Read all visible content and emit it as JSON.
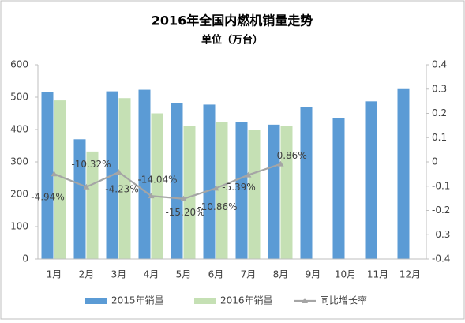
{
  "chart_data": {
    "type": "bar",
    "title": "2016年全国内燃机销量走势",
    "subtitle": "单位（万台）",
    "categories": [
      "1月",
      "2月",
      "3月",
      "4月",
      "5月",
      "6月",
      "7月",
      "8月",
      "9月",
      "10月",
      "11月",
      "12月"
    ],
    "series": [
      {
        "name": "2015年销量",
        "color": "#5b9bd5",
        "values": [
          515,
          370,
          518,
          523,
          482,
          477,
          422,
          415,
          469,
          435,
          487,
          525
        ]
      },
      {
        "name": "2016年销量",
        "color": "#c5e0b4",
        "values": [
          490,
          332,
          497,
          450,
          410,
          424,
          399,
          412,
          null,
          null,
          null,
          null
        ]
      },
      {
        "name": "同比增长率",
        "color": "#a5a5a5",
        "type": "line",
        "axis": "y2",
        "values": [
          -0.0494,
          -0.1032,
          -0.0423,
          -0.1404,
          -0.152,
          -0.1086,
          -0.0539,
          -0.0086,
          null,
          null,
          null,
          null
        ],
        "value_labels": [
          "-4.94%",
          "-10.32%",
          "-4.23%",
          "-14.04%",
          "-15.20%",
          "-10.86%",
          "-5.39%",
          "-0.86%",
          null,
          null,
          null,
          null
        ]
      }
    ],
    "ylim": [
      0,
      600
    ],
    "yticks": [
      0,
      100,
      200,
      300,
      400,
      500,
      600
    ],
    "y2lim": [
      -0.4,
      0.4
    ],
    "y2ticks": [
      -0.4,
      -0.3,
      -0.2,
      -0.1,
      0,
      0.1,
      0.2,
      0.3,
      0.4
    ],
    "legend": "bottom"
  }
}
